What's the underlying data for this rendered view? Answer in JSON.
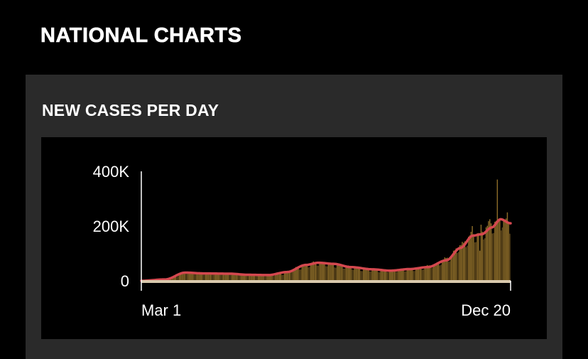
{
  "page": {
    "heading": "NATIONAL CHARTS"
  },
  "panel": {
    "title": "NEW CASES PER DAY"
  },
  "colors": {
    "background": "#000000",
    "panel": "#2a2a2a",
    "bars": "#8a6a28",
    "bars_dark": "#5e471a",
    "average_line": "#d4484f",
    "baseline": "#d9c9ad",
    "axis": "#ffffff"
  },
  "chart_data": {
    "type": "bar",
    "title": "NEW CASES PER DAY",
    "x_start_label": "Mar 1",
    "x_end_label": "Dec 20",
    "x_tick_labels": [
      "Mar 1",
      "Dec 20"
    ],
    "y_tick_values": [
      0,
      200000,
      400000
    ],
    "y_tick_labels": [
      "0",
      "200K",
      "400K"
    ],
    "ylim": [
      0,
      400000
    ],
    "grid": false,
    "legend": "none",
    "series": [
      {
        "kind": "bars",
        "interval": "daily",
        "anchors": [
          {
            "date": "2020-03-01",
            "value": 0
          },
          {
            "date": "2020-03-15",
            "value": 2000
          },
          {
            "date": "2020-03-25",
            "value": 12000
          },
          {
            "date": "2020-04-05",
            "value": 32000
          },
          {
            "date": "2020-04-15",
            "value": 30000
          },
          {
            "date": "2020-04-25",
            "value": 29000
          },
          {
            "date": "2020-05-10",
            "value": 27000
          },
          {
            "date": "2020-05-25",
            "value": 22000
          },
          {
            "date": "2020-06-10",
            "value": 20000
          },
          {
            "date": "2020-06-20",
            "value": 26000
          },
          {
            "date": "2020-07-05",
            "value": 50000
          },
          {
            "date": "2020-07-18",
            "value": 68000
          },
          {
            "date": "2020-07-25",
            "value": 65000
          },
          {
            "date": "2020-08-10",
            "value": 54000
          },
          {
            "date": "2020-08-25",
            "value": 43000
          },
          {
            "date": "2020-09-10",
            "value": 38000
          },
          {
            "date": "2020-09-20",
            "value": 40000
          },
          {
            "date": "2020-10-05",
            "value": 44000
          },
          {
            "date": "2020-10-20",
            "value": 58000
          },
          {
            "date": "2020-11-01",
            "value": 85000
          },
          {
            "date": "2020-11-10",
            "value": 130000
          },
          {
            "date": "2020-11-20",
            "value": 170000
          },
          {
            "date": "2020-11-26",
            "value": 175000
          },
          {
            "date": "2020-12-05",
            "value": 210000
          },
          {
            "date": "2020-12-12",
            "value": 225000
          },
          {
            "date": "2020-12-20",
            "value": 210000
          }
        ],
        "spikes": [
          {
            "date": "2020-11-20",
            "value": 200000
          },
          {
            "date": "2020-11-26",
            "value": 110000
          },
          {
            "date": "2020-11-27",
            "value": 205000
          },
          {
            "date": "2020-12-04",
            "value": 225000
          },
          {
            "date": "2020-12-10",
            "value": 370000
          },
          {
            "date": "2020-12-14",
            "value": 195000
          },
          {
            "date": "2020-12-18",
            "value": 250000
          }
        ]
      },
      {
        "kind": "line",
        "anchors": [
          {
            "date": "2020-03-01",
            "value": 0
          },
          {
            "date": "2020-03-20",
            "value": 5000
          },
          {
            "date": "2020-04-05",
            "value": 30000
          },
          {
            "date": "2020-04-20",
            "value": 27000
          },
          {
            "date": "2020-05-10",
            "value": 26000
          },
          {
            "date": "2020-05-25",
            "value": 22000
          },
          {
            "date": "2020-06-10",
            "value": 21000
          },
          {
            "date": "2020-06-25",
            "value": 32000
          },
          {
            "date": "2020-07-10",
            "value": 58000
          },
          {
            "date": "2020-07-20",
            "value": 66000
          },
          {
            "date": "2020-08-01",
            "value": 62000
          },
          {
            "date": "2020-08-15",
            "value": 50000
          },
          {
            "date": "2020-09-01",
            "value": 42000
          },
          {
            "date": "2020-09-15",
            "value": 37000
          },
          {
            "date": "2020-10-01",
            "value": 43000
          },
          {
            "date": "2020-10-15",
            "value": 50000
          },
          {
            "date": "2020-10-30",
            "value": 75000
          },
          {
            "date": "2020-11-10",
            "value": 120000
          },
          {
            "date": "2020-11-20",
            "value": 165000
          },
          {
            "date": "2020-11-27",
            "value": 170000
          },
          {
            "date": "2020-12-05",
            "value": 195000
          },
          {
            "date": "2020-12-12",
            "value": 225000
          },
          {
            "date": "2020-12-20",
            "value": 210000
          }
        ]
      }
    ]
  }
}
